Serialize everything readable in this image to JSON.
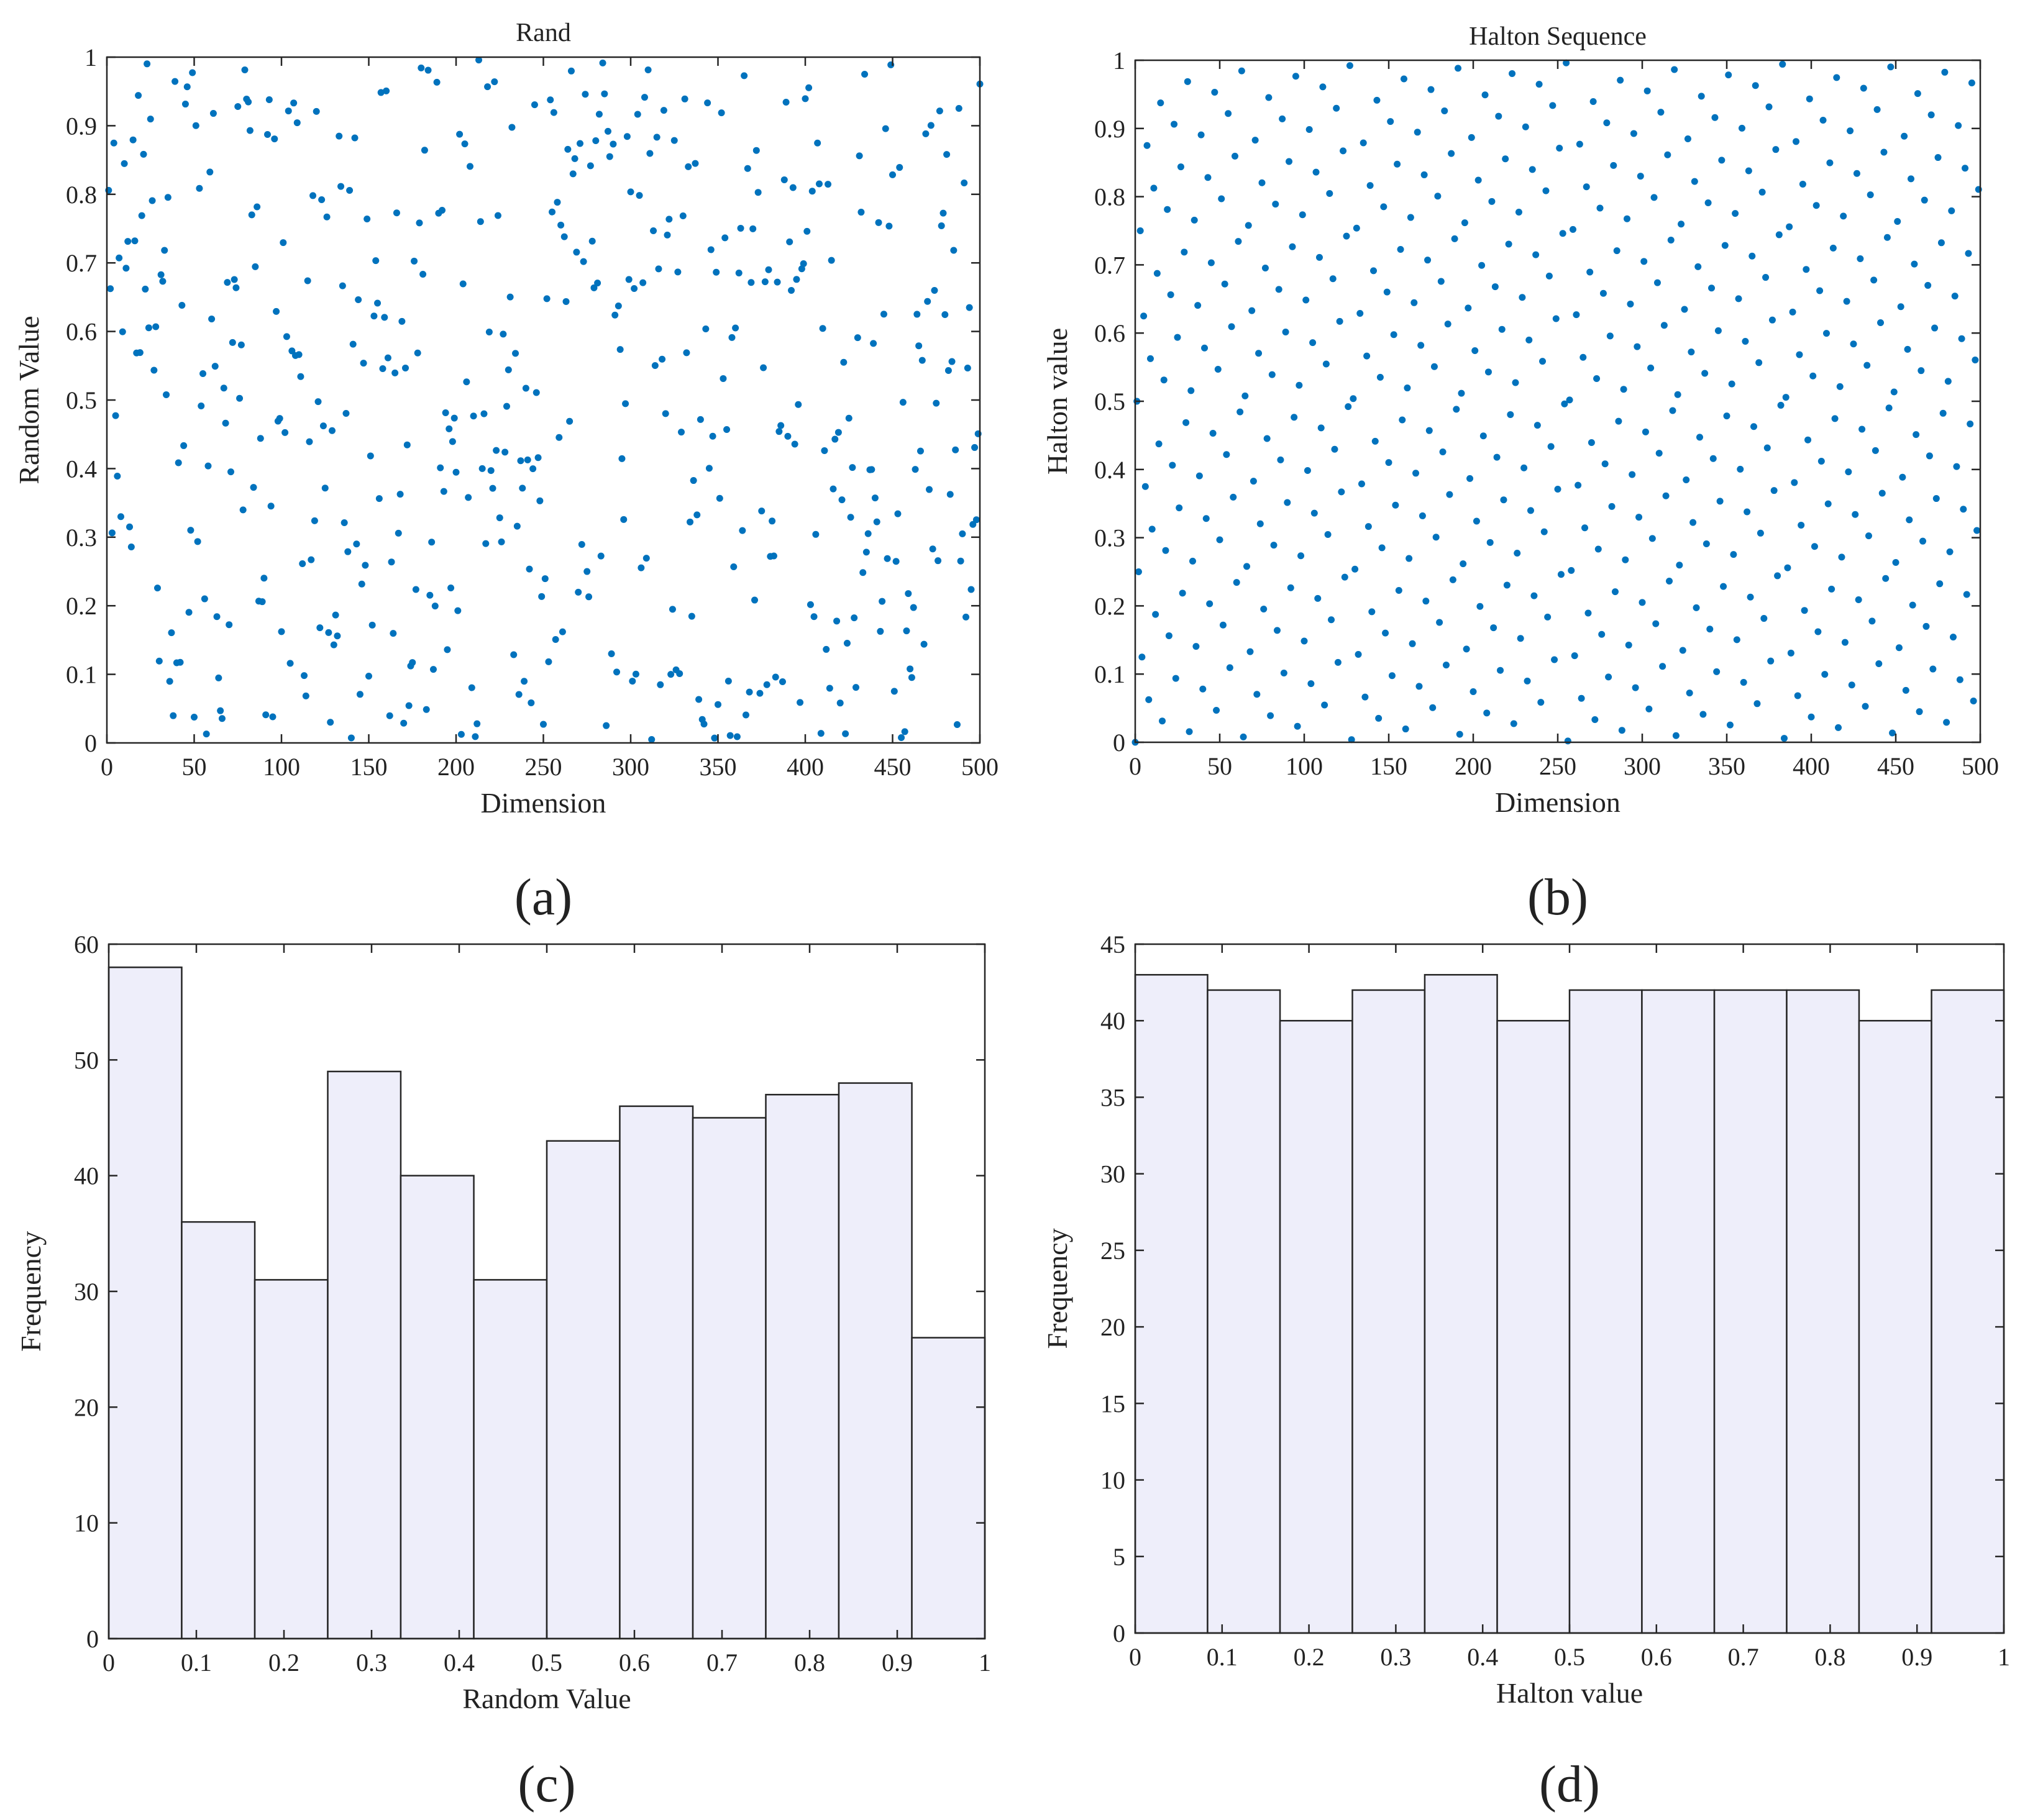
{
  "colors": {
    "marker": "#0072BD",
    "bar_fill": "#EEEEFA",
    "bar_edge": "#262626",
    "axis": "#262626"
  },
  "chart_data": [
    {
      "id": "a",
      "type": "scatter",
      "caption": "(a)",
      "title": "Rand",
      "xlabel": "Dimension",
      "ylabel": "Random Value",
      "xlim": [
        0,
        500
      ],
      "ylim": [
        0,
        1
      ],
      "xticks": [
        0,
        50,
        100,
        150,
        200,
        250,
        300,
        350,
        400,
        450,
        500
      ],
      "yticks": [
        0,
        0.1,
        0.2,
        0.3,
        0.4,
        0.5,
        0.6,
        0.7,
        0.8,
        0.9,
        1
      ],
      "n_points": 500,
      "generator": "uniform pseudo-random values for dimensions 1-500 (approximated)"
    },
    {
      "id": "b",
      "type": "scatter",
      "caption": "(b)",
      "title": "Halton Sequence",
      "xlabel": "Dimension",
      "ylabel": "Halton value",
      "xlim": [
        0,
        500
      ],
      "ylim": [
        0,
        1
      ],
      "xticks": [
        0,
        50,
        100,
        150,
        200,
        250,
        300,
        350,
        400,
        450,
        500
      ],
      "yticks": [
        0,
        0.1,
        0.2,
        0.3,
        0.4,
        0.5,
        0.6,
        0.7,
        0.8,
        0.9,
        1
      ],
      "n_points": 500,
      "generator": "Halton sequence base 2, index 0-499 (approximated)"
    },
    {
      "id": "c",
      "type": "bar",
      "caption": "(c)",
      "title": "",
      "xlabel": "Random Value",
      "ylabel": "Frequency",
      "xlim": [
        0,
        1
      ],
      "ylim": [
        0,
        60
      ],
      "xticks": [
        0,
        0.1,
        0.2,
        0.3,
        0.4,
        0.5,
        0.6,
        0.7,
        0.8,
        0.9,
        1
      ],
      "yticks": [
        0,
        10,
        20,
        30,
        40,
        50,
        60
      ],
      "bin_edges": [
        0,
        0.0833,
        0.1667,
        0.25,
        0.3333,
        0.4167,
        0.5,
        0.5833,
        0.6667,
        0.75,
        0.8333,
        0.9167,
        1
      ],
      "values": [
        58,
        36,
        31,
        49,
        40,
        31,
        43,
        46,
        45,
        47,
        48,
        26
      ]
    },
    {
      "id": "d",
      "type": "bar",
      "caption": "(d)",
      "title": "",
      "xlabel": "Halton value",
      "ylabel": "Frequency",
      "xlim": [
        0,
        1
      ],
      "ylim": [
        0,
        45
      ],
      "xticks": [
        0,
        0.1,
        0.2,
        0.3,
        0.4,
        0.5,
        0.6,
        0.7,
        0.8,
        0.9,
        1
      ],
      "yticks": [
        0,
        5,
        10,
        15,
        20,
        25,
        30,
        35,
        40,
        45
      ],
      "bin_edges": [
        0,
        0.0833,
        0.1667,
        0.25,
        0.3333,
        0.4167,
        0.5,
        0.5833,
        0.6667,
        0.75,
        0.8333,
        0.9167,
        1
      ],
      "values": [
        43,
        42,
        40,
        42,
        43,
        40,
        42,
        42,
        42,
        42,
        40,
        42
      ]
    }
  ]
}
